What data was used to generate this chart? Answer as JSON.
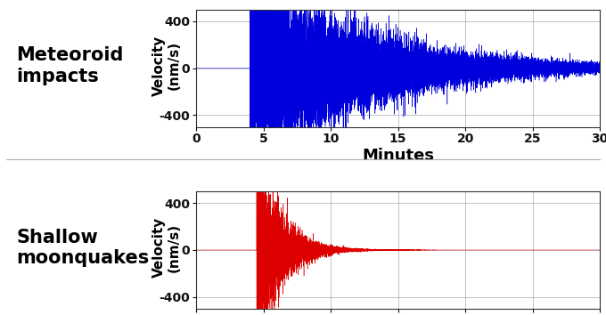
{
  "title1": "Meteoroid\nimpacts",
  "title2": "Shallow\nmoonquakes",
  "ylabel": "Velocity\n(nm/s)",
  "xlabel": "Minutes",
  "color1": "#0000dd",
  "color2": "#dd0000",
  "xlim": [
    0,
    30
  ],
  "ylim": [
    -500,
    500
  ],
  "yticks": [
    -400,
    0,
    400
  ],
  "xticks": [
    0,
    5,
    10,
    15,
    20,
    25,
    30
  ],
  "bg_color": "#ffffff",
  "title_fontsize": 15,
  "ylabel_fontsize": 11,
  "xlabel_fontsize": 13,
  "tick_fontsize": 10,
  "divider_color": "#aaaaaa",
  "meteoroid_decay": 9.0,
  "meteoroid_start": 4.0,
  "moonquake_decay": 1.8,
  "moonquake_start": 4.5,
  "peak_amplitude": 400
}
